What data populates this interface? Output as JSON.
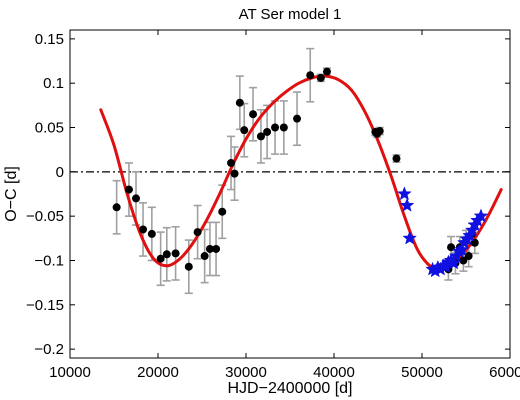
{
  "chart_data": {
    "type": "scatter",
    "title": "AT Ser model 1",
    "xlabel": "HJD−2400000 [d]",
    "ylabel": "O−C [d]",
    "xlim": [
      10000,
      60000
    ],
    "ylim": [
      -0.21,
      0.16
    ],
    "xticks": [
      10000,
      20000,
      30000,
      40000,
      50000,
      60000
    ],
    "yticks": [
      -0.2,
      -0.15,
      -0.1,
      -0.05,
      0,
      0.05,
      0.1,
      0.15
    ],
    "ytick_labels": [
      "−0.2",
      "−0.15",
      "−0.1",
      "−0.05",
      "0",
      "0.05",
      "0.1",
      "0.15"
    ],
    "grid": false,
    "colors": {
      "model": "#e01010",
      "errorbar": "#a0a0a0",
      "points": "#000000",
      "stars": "#1010e0",
      "zero_line": "#000000"
    },
    "zero_line": {
      "y": 0,
      "style": "dash-dot"
    },
    "series": [
      {
        "kind": "line",
        "x": [
          13500,
          15000,
          16500,
          18000,
          19500,
          21000,
          22500,
          24000,
          25500,
          27000,
          28500,
          30000,
          31500,
          33000,
          34500,
          36000,
          37500,
          39000,
          40500,
          42000,
          43500,
          45000,
          46500,
          48000,
          49500,
          51000,
          52000,
          53000,
          54500,
          56000,
          57500,
          59000
        ],
        "y": [
          0.07,
          0.03,
          -0.025,
          -0.07,
          -0.098,
          -0.106,
          -0.098,
          -0.08,
          -0.055,
          -0.025,
          0.008,
          0.037,
          0.06,
          0.077,
          0.09,
          0.1,
          0.106,
          0.108,
          0.104,
          0.092,
          0.068,
          0.035,
          -0.005,
          -0.05,
          -0.088,
          -0.107,
          -0.109,
          -0.106,
          -0.094,
          -0.075,
          -0.05,
          -0.02
        ]
      },
      {
        "kind": "points_with_errorbars",
        "points": [
          {
            "x": 15300,
            "y": -0.04,
            "err": 0.03
          },
          {
            "x": 16700,
            "y": -0.02,
            "err": 0.03
          },
          {
            "x": 17500,
            "y": -0.03,
            "err": 0.03
          },
          {
            "x": 18300,
            "y": -0.065,
            "err": 0.03
          },
          {
            "x": 19300,
            "y": -0.07,
            "err": 0.03
          },
          {
            "x": 20300,
            "y": -0.098,
            "err": 0.03
          },
          {
            "x": 21000,
            "y": -0.093,
            "err": 0.03
          },
          {
            "x": 22000,
            "y": -0.092,
            "err": 0.03
          },
          {
            "x": 23500,
            "y": -0.107,
            "err": 0.03
          },
          {
            "x": 24500,
            "y": -0.068,
            "err": 0.03
          },
          {
            "x": 25300,
            "y": -0.095,
            "err": 0.03
          },
          {
            "x": 25900,
            "y": -0.087,
            "err": 0.03
          },
          {
            "x": 26600,
            "y": -0.087,
            "err": 0.03
          },
          {
            "x": 27300,
            "y": -0.045,
            "err": 0.03
          },
          {
            "x": 28300,
            "y": 0.01,
            "err": 0.03
          },
          {
            "x": 28700,
            "y": -0.002,
            "err": 0.03
          },
          {
            "x": 29300,
            "y": 0.078,
            "err": 0.03
          },
          {
            "x": 29800,
            "y": 0.047,
            "err": 0.03
          },
          {
            "x": 30800,
            "y": 0.065,
            "err": 0.03
          },
          {
            "x": 31700,
            "y": 0.04,
            "err": 0.03
          },
          {
            "x": 32400,
            "y": 0.045,
            "err": 0.03
          },
          {
            "x": 33300,
            "y": 0.05,
            "err": 0.03
          },
          {
            "x": 34300,
            "y": 0.05,
            "err": 0.03
          },
          {
            "x": 35800,
            "y": 0.06,
            "err": 0.03
          },
          {
            "x": 37300,
            "y": 0.109,
            "err": 0.03
          },
          {
            "x": 38500,
            "y": 0.106,
            "err": 0.004
          },
          {
            "x": 39200,
            "y": 0.113,
            "err": 0.004
          },
          {
            "x": 44700,
            "y": 0.045,
            "err": 0.004
          },
          {
            "x": 44900,
            "y": 0.043,
            "err": 0.004
          },
          {
            "x": 45200,
            "y": 0.046,
            "err": 0.004
          },
          {
            "x": 47100,
            "y": 0.015,
            "err": 0.004
          },
          {
            "x": 53000,
            "y": -0.11,
            "err": 0.012
          },
          {
            "x": 53300,
            "y": -0.085,
            "err": 0.012
          },
          {
            "x": 53800,
            "y": -0.103,
            "err": 0.012
          },
          {
            "x": 54300,
            "y": -0.085,
            "err": 0.012
          },
          {
            "x": 54700,
            "y": -0.1,
            "err": 0.012
          },
          {
            "x": 55000,
            "y": -0.078,
            "err": 0.012
          },
          {
            "x": 55300,
            "y": -0.095,
            "err": 0.012
          },
          {
            "x": 55700,
            "y": -0.07,
            "err": 0.012
          },
          {
            "x": 56000,
            "y": -0.08,
            "err": 0.012
          }
        ]
      },
      {
        "kind": "stars",
        "x": [
          48000,
          48300,
          48600,
          51200,
          51500,
          51800,
          52100,
          52400,
          52700,
          53000,
          53300,
          53600,
          53900,
          54200,
          54500,
          54800,
          55100,
          55400,
          55700,
          56000,
          56300,
          56700
        ],
        "y": [
          -0.025,
          -0.038,
          -0.075,
          -0.11,
          -0.112,
          -0.108,
          -0.11,
          -0.106,
          -0.107,
          -0.102,
          -0.1,
          -0.103,
          -0.095,
          -0.09,
          -0.088,
          -0.08,
          -0.076,
          -0.072,
          -0.066,
          -0.06,
          -0.055,
          -0.05
        ]
      }
    ]
  }
}
